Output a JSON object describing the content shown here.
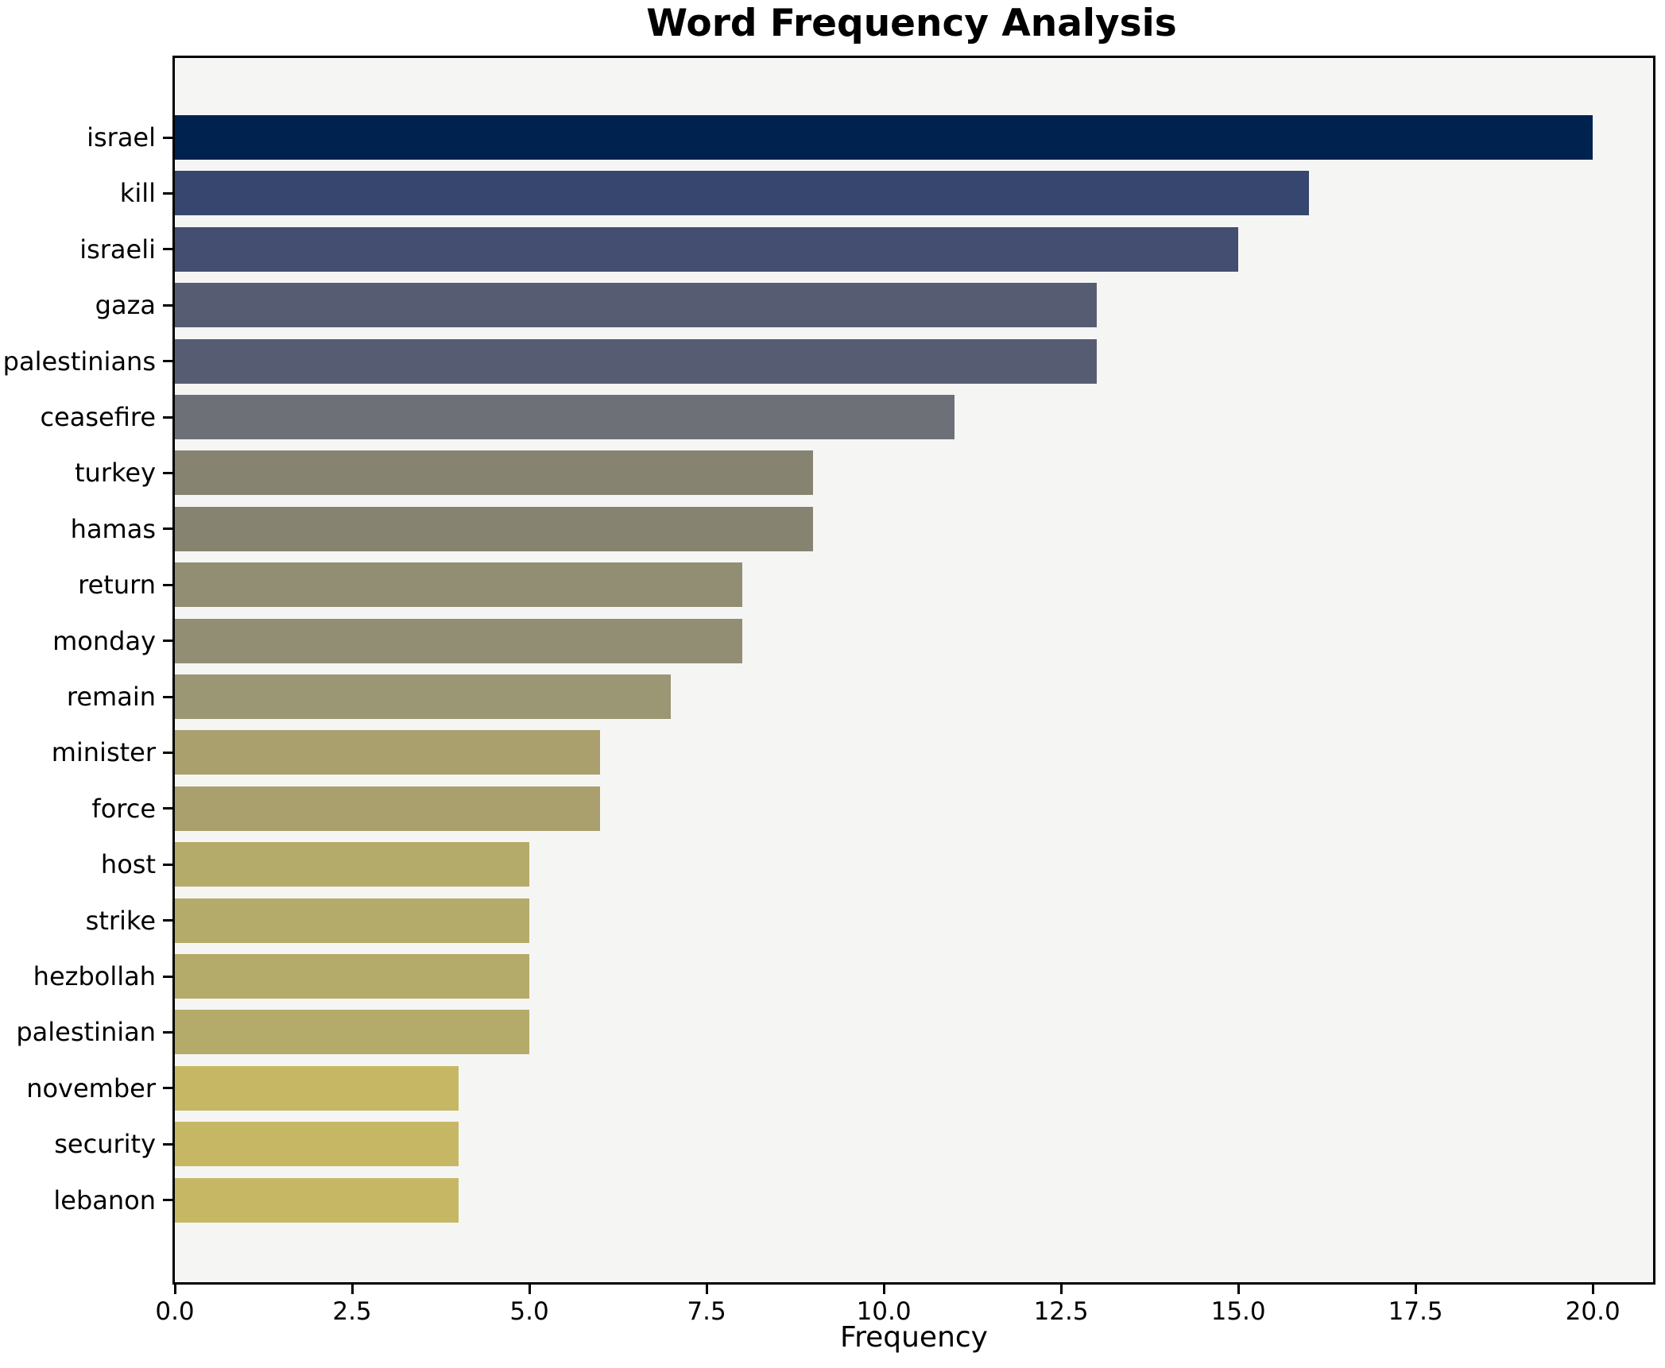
{
  "title": "Word Frequency Analysis",
  "chart_data": {
    "type": "bar",
    "orientation": "horizontal",
    "title": "Word Frequency Analysis",
    "xlabel": "Frequency",
    "ylabel": "",
    "categories": [
      "israel",
      "kill",
      "israeli",
      "gaza",
      "palestinians",
      "ceasefire",
      "turkey",
      "hamas",
      "return",
      "monday",
      "remain",
      "minister",
      "force",
      "host",
      "strike",
      "hezbollah",
      "palestinian",
      "november",
      "security",
      "lebanon"
    ],
    "values": [
      20,
      16,
      15,
      13,
      13,
      11,
      9,
      9,
      8,
      8,
      7,
      6,
      6,
      5,
      5,
      5,
      5,
      4,
      4,
      4
    ],
    "bar_colors": [
      "#00224e",
      "#36466e",
      "#444e70",
      "#565d73",
      "#565d73",
      "#6e7077",
      "#868370",
      "#868370",
      "#918e74",
      "#918e74",
      "#9b9673",
      "#a9a06e",
      "#a9a06e",
      "#b4aa6a",
      "#b4aa6a",
      "#b4aa6a",
      "#b4aa6a",
      "#c6b765",
      "#c6b765",
      "#c6b765"
    ],
    "xlim": [
      0,
      20.85
    ],
    "xticks": [
      0,
      2.5,
      5,
      7.5,
      10,
      12.5,
      15,
      17.5,
      20
    ],
    "xtick_labels": [
      "0.0",
      "2.5",
      "5.0",
      "7.5",
      "10.0",
      "12.5",
      "15.0",
      "17.5",
      "20.0"
    ],
    "grid": false,
    "legend": false,
    "plot_background": "#f5f5f4",
    "figure_background": "#ffffff",
    "spine_color": "#000000"
  }
}
